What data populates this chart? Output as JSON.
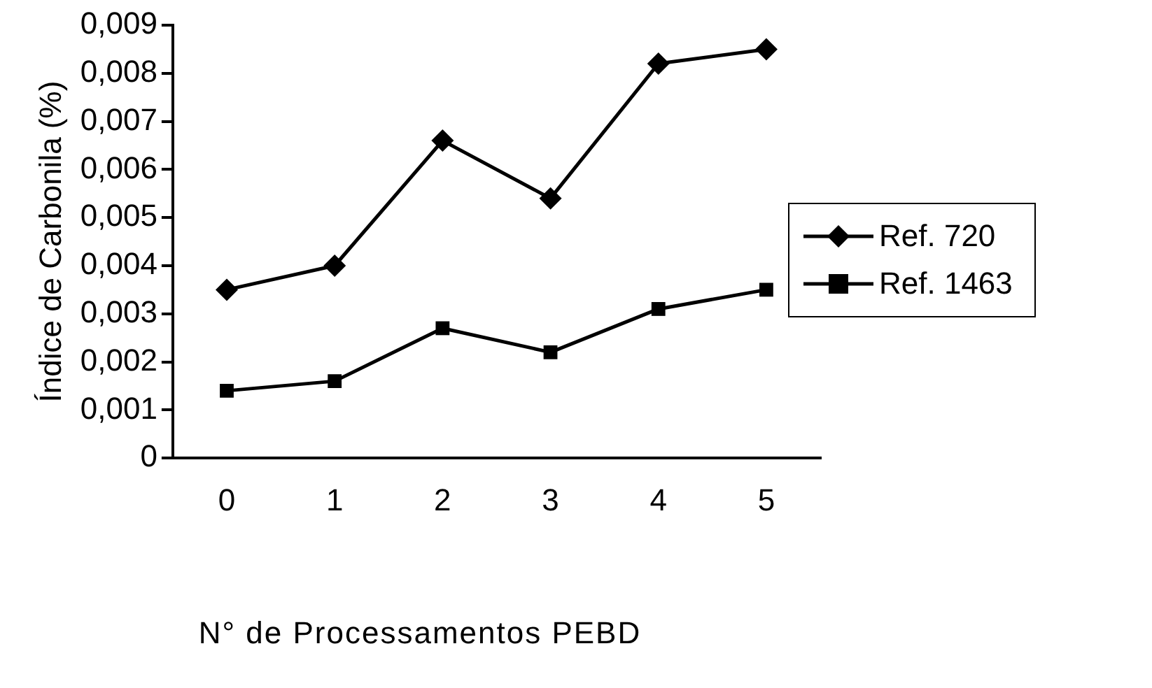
{
  "chart_data": {
    "type": "line",
    "xlabel": "N° de Processamentos PEBD",
    "ylabel": "Índice de Carbonila (%)",
    "categories": [
      "0",
      "1",
      "2",
      "3",
      "4",
      "5"
    ],
    "series": [
      {
        "name": "Ref. 720",
        "color": "#000000",
        "marker": "diamond",
        "values": [
          0.0035,
          0.004,
          0.0066,
          0.0054,
          0.0082,
          0.0085
        ]
      },
      {
        "name": "Ref. 1463",
        "color": "#000000",
        "marker": "square",
        "values": [
          0.0014,
          0.0016,
          0.0027,
          0.0022,
          0.0031,
          0.0035
        ]
      }
    ],
    "ylim": [
      0,
      0.009
    ],
    "yticks": [
      {
        "value": 0,
        "label": "0"
      },
      {
        "value": 0.001,
        "label": "0,001"
      },
      {
        "value": 0.002,
        "label": "0,002"
      },
      {
        "value": 0.003,
        "label": "0,003"
      },
      {
        "value": 0.004,
        "label": "0,004"
      },
      {
        "value": 0.005,
        "label": "0,005"
      },
      {
        "value": 0.006,
        "label": "0,006"
      },
      {
        "value": 0.007,
        "label": "0,007"
      },
      {
        "value": 0.008,
        "label": "0,008"
      },
      {
        "value": 0.009,
        "label": "0,009"
      }
    ],
    "grid": false,
    "legend": "right",
    "line_style": "solid"
  }
}
